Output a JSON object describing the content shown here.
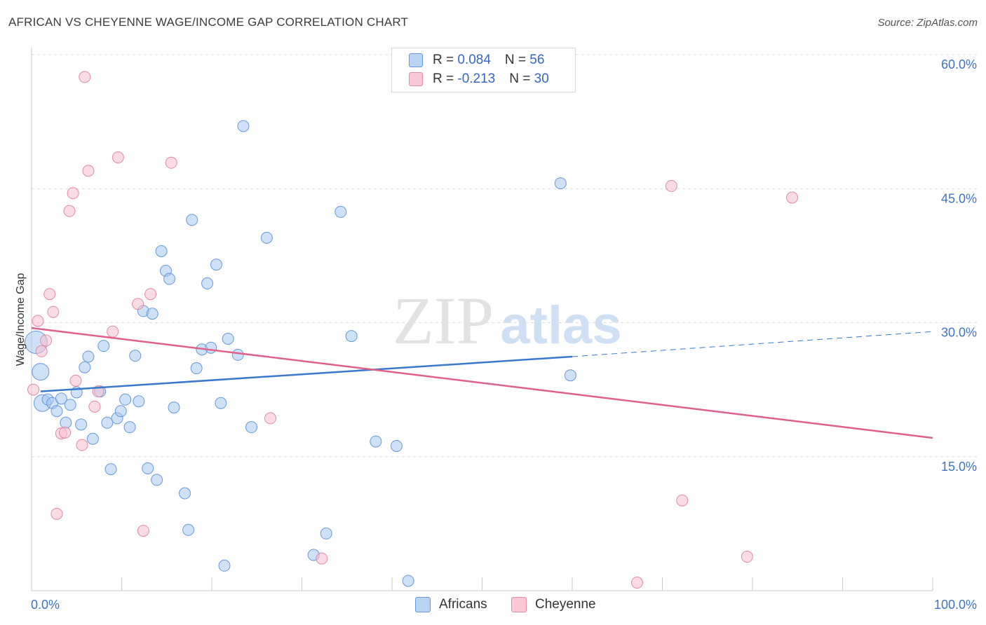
{
  "chart_data": {
    "type": "scatter",
    "title": "AFRICAN VS CHEYENNE WAGE/INCOME GAP CORRELATION CHART",
    "source": "Source: ZipAtlas.com",
    "xlabel": "",
    "ylabel": "Wage/Income Gap",
    "xlim": [
      0,
      100
    ],
    "ylim": [
      0,
      60
    ],
    "x_tick_labels": [
      "0.0%",
      "100.0%"
    ],
    "y_tick_labels": [
      "15.0%",
      "30.0%",
      "45.0%",
      "60.0%"
    ],
    "y_tick_values": [
      15,
      30,
      45,
      60
    ],
    "watermark": "ZIPatlas",
    "legend": [
      {
        "name": "R = ",
        "r_value": "0.084",
        "n_label": "N = ",
        "n_value": "56"
      },
      {
        "name": "R = ",
        "r_value": "-0.213",
        "n_label": "N = ",
        "n_value": "30"
      }
    ],
    "series": [
      {
        "name": "Africans",
        "color": "#a8c8f0",
        "edge": "#6699dd",
        "trend_color": "#3a78cc",
        "trend": {
          "x0": 1,
          "y0": 22.3,
          "x1": 60,
          "y1": 26.2,
          "dash_x1": 100,
          "dash_y1": 29.0
        },
        "points": [
          [
            0.5,
            27.8,
            3
          ],
          [
            1,
            24.5,
            2
          ],
          [
            1.2,
            21.0,
            2
          ],
          [
            1.8,
            21.4,
            1
          ],
          [
            2.3,
            21.0,
            1
          ],
          [
            2.8,
            20.1,
            1
          ],
          [
            3.3,
            21.5,
            1
          ],
          [
            3.8,
            18.8,
            1
          ],
          [
            4.3,
            20.8,
            1
          ],
          [
            5,
            22.2,
            1
          ],
          [
            5.5,
            18.6,
            1
          ],
          [
            5.9,
            25.0,
            1
          ],
          [
            6.3,
            26.2,
            1
          ],
          [
            6.8,
            17.0,
            1
          ],
          [
            7.6,
            22.3,
            1
          ],
          [
            8,
            27.4,
            1
          ],
          [
            8.4,
            18.8,
            1
          ],
          [
            8.8,
            13.6,
            1
          ],
          [
            9.5,
            19.3,
            1
          ],
          [
            9.9,
            20.1,
            1
          ],
          [
            10.4,
            21.4,
            1
          ],
          [
            10.9,
            18.3,
            1
          ],
          [
            11.5,
            26.3,
            1
          ],
          [
            11.9,
            21.2,
            1
          ],
          [
            12.4,
            31.3,
            1
          ],
          [
            12.9,
            13.7,
            1
          ],
          [
            13.4,
            31.0,
            1
          ],
          [
            13.9,
            12.4,
            1
          ],
          [
            14.4,
            38.0,
            1
          ],
          [
            14.9,
            35.8,
            1
          ],
          [
            15.3,
            34.9,
            1
          ],
          [
            15.8,
            20.5,
            1
          ],
          [
            17,
            10.9,
            1
          ],
          [
            17.4,
            6.8,
            1
          ],
          [
            17.8,
            41.5,
            1
          ],
          [
            18.3,
            24.9,
            1
          ],
          [
            18.9,
            27.0,
            1
          ],
          [
            19.5,
            34.4,
            1
          ],
          [
            19.9,
            27.2,
            1
          ],
          [
            20.5,
            36.5,
            1
          ],
          [
            21,
            21.0,
            1
          ],
          [
            21.4,
            2.8,
            1
          ],
          [
            21.8,
            28.2,
            1
          ],
          [
            22.9,
            26.4,
            1
          ],
          [
            23.5,
            52.0,
            1
          ],
          [
            24.4,
            18.3,
            1
          ],
          [
            26.1,
            39.5,
            1
          ],
          [
            31.3,
            4.0,
            1
          ],
          [
            32.7,
            6.4,
            1
          ],
          [
            34.3,
            42.4,
            1
          ],
          [
            35.5,
            28.5,
            1
          ],
          [
            38.2,
            16.7,
            1
          ],
          [
            40.5,
            16.2,
            1
          ],
          [
            41.8,
            1.1,
            1
          ],
          [
            58.7,
            45.6,
            1
          ],
          [
            59.8,
            24.1,
            1
          ]
        ]
      },
      {
        "name": "Cheyenne",
        "color": "#f7bfd0",
        "edge": "#e38aa6",
        "trend_color": "#e0608a",
        "trend": {
          "x0": 0,
          "y0": 29.4,
          "x1": 100,
          "y1": 17.1
        },
        "points": [
          [
            0.2,
            22.5,
            1
          ],
          [
            0.7,
            30.2,
            1
          ],
          [
            1.1,
            26.8,
            1
          ],
          [
            1.6,
            28.0,
            1
          ],
          [
            2.0,
            33.2,
            1
          ],
          [
            2.4,
            31.2,
            1
          ],
          [
            2.8,
            8.6,
            1
          ],
          [
            3.3,
            17.6,
            1
          ],
          [
            3.7,
            17.7,
            1
          ],
          [
            4.2,
            42.5,
            1
          ],
          [
            4.6,
            44.5,
            1
          ],
          [
            4.9,
            23.5,
            1
          ],
          [
            5.6,
            16.3,
            1
          ],
          [
            5.9,
            57.5,
            1
          ],
          [
            6.3,
            47.0,
            1
          ],
          [
            7.0,
            20.6,
            1
          ],
          [
            7.4,
            22.3,
            1
          ],
          [
            9.0,
            29.0,
            1
          ],
          [
            9.6,
            48.5,
            1
          ],
          [
            11.8,
            32.1,
            1
          ],
          [
            12.4,
            6.7,
            1
          ],
          [
            13.2,
            33.2,
            1
          ],
          [
            15.5,
            47.9,
            1
          ],
          [
            26.5,
            19.3,
            1
          ],
          [
            32.2,
            3.6,
            1
          ],
          [
            67.2,
            0.9,
            1
          ],
          [
            71.0,
            45.3,
            1
          ],
          [
            72.2,
            10.1,
            1
          ],
          [
            79.4,
            3.8,
            1
          ],
          [
            84.4,
            44.0,
            1
          ]
        ]
      }
    ]
  }
}
